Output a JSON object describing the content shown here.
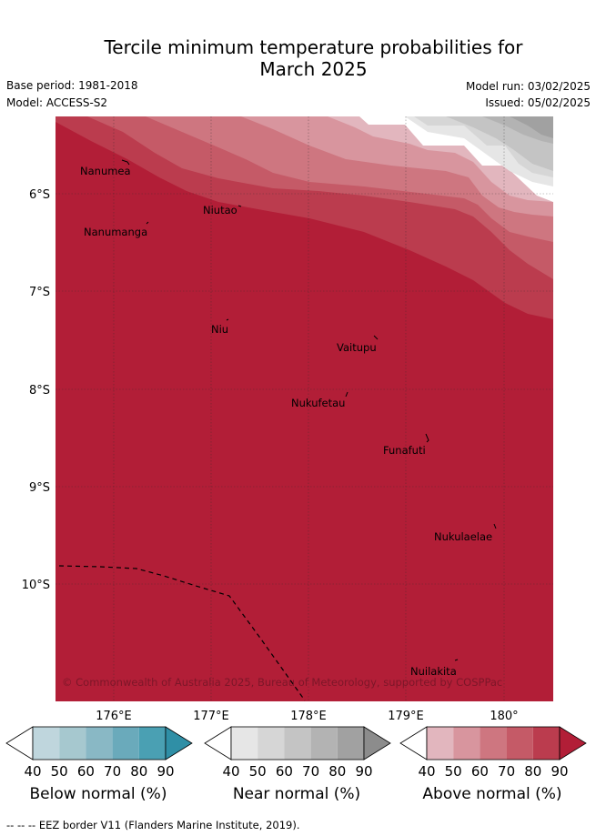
{
  "title_line1": "Tercile minimum temperature probabilities for",
  "title_line2": "March 2025",
  "base_period": "Base period: 1981-2018",
  "model": "Model: ACCESS-S2",
  "model_run": "Model run: 03/02/2025",
  "issued": "Issued: 05/02/2025",
  "map": {
    "lon_ticks": [
      "176°E",
      "177°E",
      "178°E",
      "179°E",
      "180°"
    ],
    "lat_ticks": [
      "6°S",
      "7°S",
      "8°S",
      "9°S",
      "10°S"
    ],
    "places": [
      "Nanumea",
      "Nanumanga",
      "Niutao",
      "Niu",
      "Vaitupu",
      "Nukufetau",
      "Funafuti",
      "Nukulaelae",
      "Nuilakita"
    ],
    "copyright": "© Commonwealth of Australia 2025, Bureau of Meteorology, supported by COSPPac",
    "main_fill": "#b21e37"
  },
  "colorbars": [
    {
      "name": "below",
      "label": "Below normal (%)",
      "ticks": [
        "40",
        "50",
        "60",
        "70",
        "80",
        "90"
      ],
      "colors": [
        "#ffffff",
        "#bfd6dd",
        "#a6c8cf",
        "#89b8c5",
        "#6aaabb",
        "#4aa0b3",
        "#2f8fa6"
      ]
    },
    {
      "name": "near",
      "label": "Near normal (%)",
      "ticks": [
        "40",
        "50",
        "60",
        "70",
        "80",
        "90"
      ],
      "colors": [
        "#ffffff",
        "#e6e6e6",
        "#d6d6d6",
        "#c4c4c4",
        "#b3b3b3",
        "#a1a1a1",
        "#8c8c8c"
      ]
    },
    {
      "name": "above",
      "label": "Above normal (%)",
      "ticks": [
        "40",
        "50",
        "60",
        "70",
        "80",
        "90"
      ],
      "colors": [
        "#ffffff",
        "#e2b6be",
        "#d8959e",
        "#ce7680",
        "#c55a67",
        "#bb3c4e",
        "#b21e37"
      ]
    }
  ],
  "footer": "--  --  -- EEZ border V11 (Flanders Marine Institute, 2019)."
}
